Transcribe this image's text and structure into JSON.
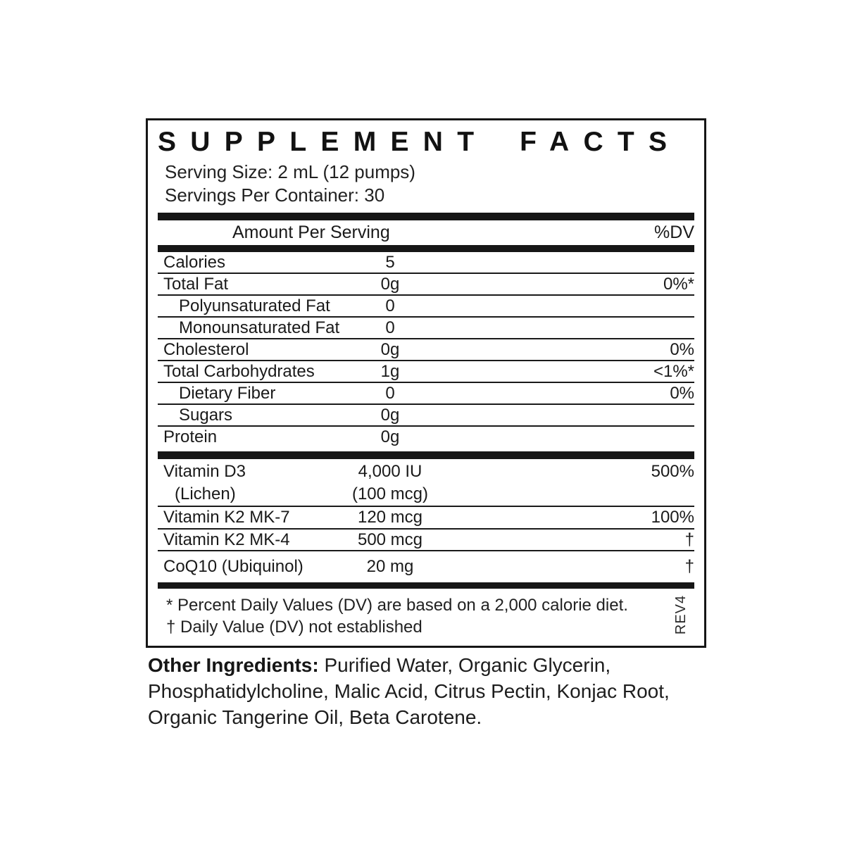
{
  "colors": {
    "ink": "#1a1a1a",
    "background": "#ffffff"
  },
  "label": {
    "title": "SUPPLEMENT FACTS",
    "serving_size": "Serving Size: 2 mL (12 pumps)",
    "servings_per_container": "Servings Per Container: 30",
    "header": {
      "amount_per_serving": "Amount Per Serving",
      "dv": "%DV"
    },
    "rows": [
      {
        "name": "Calories",
        "amount": "5",
        "dv": "",
        "indent": false
      },
      {
        "name": "Total Fat",
        "amount": "0g",
        "dv": "0%*",
        "indent": false
      },
      {
        "name": "Polyunsaturated Fat",
        "amount": "0",
        "dv": "",
        "indent": true
      },
      {
        "name": "Monounsaturated Fat",
        "amount": "0",
        "dv": "",
        "indent": true
      },
      {
        "name": "Cholesterol",
        "amount": "0g",
        "dv": "0%",
        "indent": false
      },
      {
        "name": "Total Carbohydrates",
        "amount": "1g",
        "dv": "<1%*",
        "indent": false
      },
      {
        "name": "Dietary Fiber",
        "amount": "0",
        "dv": "0%",
        "indent": true
      },
      {
        "name": "Sugars",
        "amount": "0g",
        "dv": "",
        "indent": true
      },
      {
        "name": "Protein",
        "amount": "0g",
        "dv": "",
        "indent": false
      }
    ],
    "vitamins": [
      {
        "name": "Vitamin D3",
        "name2": "(Lichen)",
        "amount": "4,000 IU",
        "amount2": "(100 mcg)",
        "dv": "500%"
      },
      {
        "name": "Vitamin K2 MK-7",
        "amount": "120 mcg",
        "dv": "100%"
      },
      {
        "name": "Vitamin K2 MK-4",
        "amount": "500 mcg",
        "dv": "†"
      },
      {
        "name": "CoQ10 (Ubiquinol)",
        "amount": "20 mg",
        "dv": "†"
      }
    ],
    "footnotes": [
      "* Percent Daily Values (DV) are based on a 2,000 calorie diet.",
      "† Daily Value (DV) not established"
    ],
    "rev": "REV4"
  },
  "other_ingredients": {
    "label": "Other Ingredients:",
    "line1": "Purified Water, Organic Glycerin,",
    "line2": "Phosphatidylcholine, Malic Acid, Citrus Pectin, Konjac Root,",
    "line3": "Organic Tangerine Oil, Beta Carotene."
  }
}
